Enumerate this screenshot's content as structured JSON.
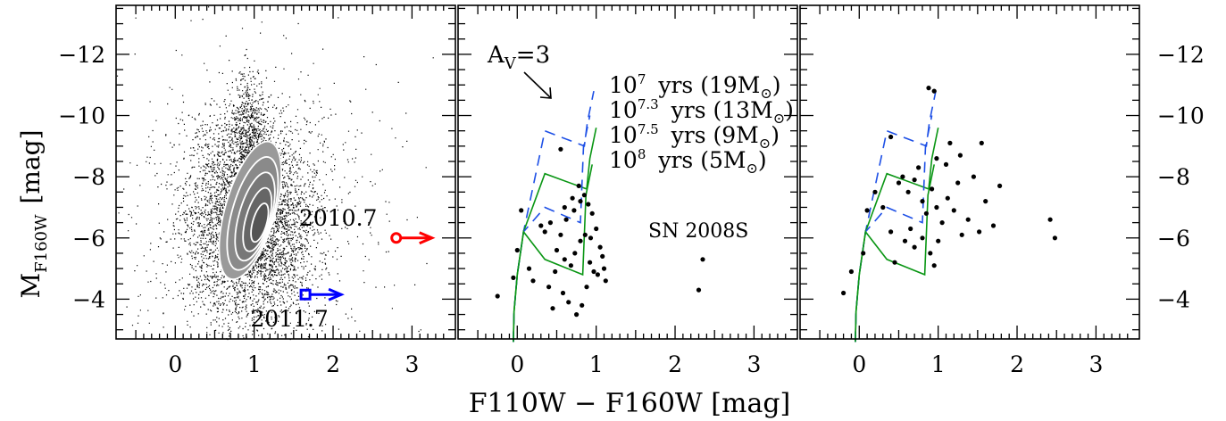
{
  "chart_data": {
    "type": "scatter",
    "xlabel": "F110W − F160W   [mag]",
    "ylabel": "M",
    "ylabel_sub": "F160W",
    "ylabel_unit": "[mag]",
    "xlim": [
      -0.75,
      3.55
    ],
    "ylim": [
      -2.7,
      -13.6
    ],
    "x_ticks": [
      0,
      1,
      2,
      3
    ],
    "y_ticks": [
      -12,
      -10,
      -8,
      -6,
      -4
    ],
    "y_tick_labels": [
      "−12",
      "−10",
      "−8",
      "−6",
      "−4"
    ],
    "panels": [
      {
        "id": "field-stars",
        "density_cloud": {
          "center_x": 0.95,
          "center_y": -7.2,
          "n_points": 6000
        },
        "contour_levels": 5,
        "epochs": [
          {
            "label": "2010.7",
            "x": 2.8,
            "y": -6.0,
            "color": "#ff0000",
            "marker": "circle",
            "limit": "right"
          },
          {
            "label": "2011.7",
            "x": 1.65,
            "y": -4.15,
            "color": "#0000ff",
            "marker": "square",
            "limit": "right"
          }
        ]
      },
      {
        "id": "sn-2008s-neighbourhood",
        "label": "SN 2008S",
        "reddening_vector": {
          "label": "A",
          "sub": "V",
          "value": "=3"
        },
        "isochrones": [
          {
            "age": "10",
            "exp": "7",
            "text": "yrs (19M",
            "mass_symbol": "⊙",
            "close": ")",
            "color": "#1e50e6",
            "dash": "12,8"
          },
          {
            "age": "10",
            "exp": "7.3",
            "text": "yrs (13M",
            "mass_symbol": "⊙",
            "close": ")",
            "color": "#0a9614",
            "dash": ""
          },
          {
            "age": "10",
            "exp": "7.5",
            "text": "yrs  (9M",
            "mass_symbol": "⊙",
            "close": ")",
            "color": "#1e50e6",
            "dash": "12,8"
          },
          {
            "age": "10",
            "exp": "8",
            "text": "yrs  (5M",
            "mass_symbol": "⊙",
            "close": ")",
            "color": "#0a9614",
            "dash": ""
          }
        ],
        "points": [
          [
            2.35,
            -5.3
          ],
          [
            2.3,
            -4.3
          ],
          [
            0.55,
            -8.9
          ],
          [
            -0.25,
            -4.1
          ],
          [
            0.05,
            -6.9
          ],
          [
            0.0,
            -5.6
          ],
          [
            -0.05,
            -4.7
          ],
          [
            0.15,
            -5.0
          ],
          [
            0.2,
            -4.6
          ],
          [
            0.3,
            -6.4
          ],
          [
            0.35,
            -6.2
          ],
          [
            0.42,
            -6.5
          ],
          [
            0.5,
            -5.6
          ],
          [
            0.55,
            -6.1
          ],
          [
            0.6,
            -7.0
          ],
          [
            0.62,
            -6.6
          ],
          [
            0.7,
            -7.3
          ],
          [
            0.72,
            -6.9
          ],
          [
            0.78,
            -7.7
          ],
          [
            0.8,
            -7.2
          ],
          [
            0.85,
            -7.4
          ],
          [
            0.9,
            -7.1
          ],
          [
            0.95,
            -6.8
          ],
          [
            1.0,
            -6.3
          ],
          [
            1.05,
            -5.7
          ],
          [
            1.1,
            -5.0
          ],
          [
            1.12,
            -4.6
          ],
          [
            0.88,
            -4.4
          ],
          [
            0.82,
            -3.8
          ],
          [
            0.75,
            -3.5
          ],
          [
            0.65,
            -3.9
          ],
          [
            0.58,
            -4.2
          ],
          [
            0.48,
            -4.9
          ],
          [
            0.45,
            -3.7
          ],
          [
            0.4,
            -4.4
          ],
          [
            0.92,
            -5.2
          ],
          [
            0.97,
            -4.9
          ],
          [
            1.02,
            -4.8
          ],
          [
            1.08,
            -5.4
          ],
          [
            0.68,
            -5.1
          ],
          [
            0.73,
            -5.5
          ],
          [
            0.8,
            -5.9
          ],
          [
            0.86,
            -6.1
          ],
          [
            0.93,
            -6.0
          ],
          [
            0.6,
            -5.3
          ]
        ]
      },
      {
        "id": "host-comparison",
        "points": [
          [
            0.88,
            -10.9
          ],
          [
            0.95,
            -10.8
          ],
          [
            0.4,
            -9.3
          ],
          [
            -0.2,
            -4.2
          ],
          [
            -0.1,
            -4.9
          ],
          [
            0.05,
            -5.5
          ],
          [
            0.1,
            -6.9
          ],
          [
            0.2,
            -7.5
          ],
          [
            0.3,
            -7.0
          ],
          [
            0.4,
            -6.2
          ],
          [
            0.5,
            -7.8
          ],
          [
            0.55,
            -8.0
          ],
          [
            0.62,
            -7.5
          ],
          [
            0.7,
            -7.9
          ],
          [
            0.75,
            -8.3
          ],
          [
            0.8,
            -7.2
          ],
          [
            0.85,
            -6.8
          ],
          [
            0.92,
            -7.6
          ],
          [
            0.98,
            -7.0
          ],
          [
            1.05,
            -6.5
          ],
          [
            1.12,
            -7.3
          ],
          [
            1.2,
            -6.9
          ],
          [
            1.25,
            -7.8
          ],
          [
            1.3,
            -6.1
          ],
          [
            1.38,
            -6.6
          ],
          [
            1.45,
            -8.0
          ],
          [
            1.52,
            -6.2
          ],
          [
            1.6,
            -7.2
          ],
          [
            1.7,
            -6.4
          ],
          [
            1.78,
            -7.7
          ],
          [
            2.42,
            -6.6
          ],
          [
            2.48,
            -6.0
          ],
          [
            0.9,
            -5.5
          ],
          [
            0.95,
            -5.1
          ],
          [
            1.0,
            -5.9
          ],
          [
            0.65,
            -6.3
          ],
          [
            0.7,
            -5.7
          ],
          [
            0.58,
            -5.9
          ],
          [
            0.8,
            -6.0
          ],
          [
            1.1,
            -8.4
          ],
          [
            0.98,
            -8.6
          ],
          [
            1.15,
            -9.1
          ],
          [
            1.28,
            -8.7
          ],
          [
            1.55,
            -9.1
          ],
          [
            0.45,
            -5.2
          ]
        ]
      }
    ]
  }
}
